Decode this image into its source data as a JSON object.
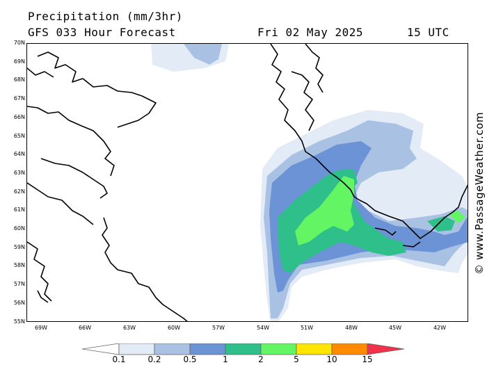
{
  "header": {
    "title": "Precipitation (mm/3hr)",
    "subtitle": "GFS 033 Hour Forecast",
    "date": "Fri 02 May 2025",
    "time": "15 UTC"
  },
  "credit": "© www.PassageWeather.com",
  "map": {
    "lat_labels": [
      "70N",
      "69N",
      "68N",
      "67N",
      "66N",
      "65N",
      "64N",
      "63N",
      "62N",
      "61N",
      "60N",
      "59N",
      "58N",
      "57N",
      "56N",
      "55N"
    ],
    "lon_labels": [
      "69W",
      "66W",
      "63W",
      "60W",
      "57W",
      "54W",
      "51W",
      "48W",
      "45W",
      "42W"
    ]
  },
  "legend": {
    "labels": [
      "0.1",
      "0.2",
      "0.5",
      "1",
      "2",
      "5",
      "10",
      "15"
    ],
    "colors": {
      "c0": "#ffffff",
      "c1": "#e3ebf6",
      "c2": "#a9c2e3",
      "c3": "#6b93d6",
      "c4": "#2fbf8a",
      "c5": "#63f563",
      "c6": "#ffe500",
      "c7": "#ff8a00",
      "c8": "#f0334a"
    }
  }
}
